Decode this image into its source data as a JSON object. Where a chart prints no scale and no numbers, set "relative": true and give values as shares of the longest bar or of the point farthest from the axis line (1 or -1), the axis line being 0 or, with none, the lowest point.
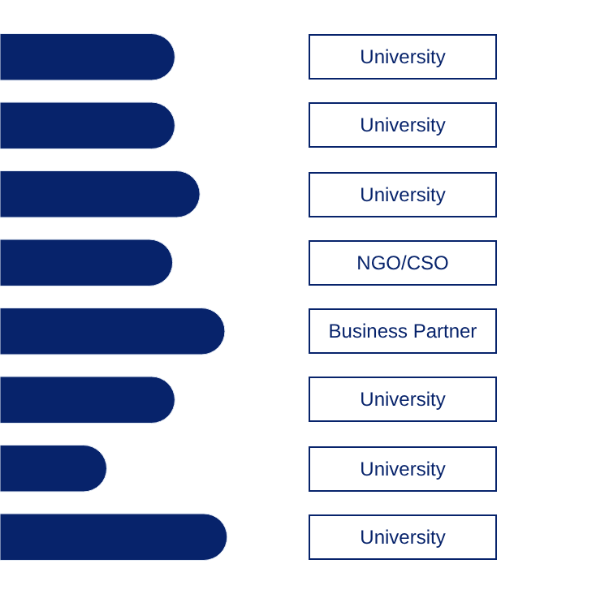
{
  "chart_data": {
    "type": "bar",
    "orientation": "horizontal",
    "relative": true,
    "categories": [
      "University",
      "University",
      "University",
      "NGO/CSO",
      "Business Partner",
      "University",
      "University",
      "University"
    ],
    "values": [
      0.77,
      0.77,
      0.88,
      0.76,
      0.99,
      0.77,
      0.47,
      1.0
    ],
    "color": "#07236b"
  }
}
